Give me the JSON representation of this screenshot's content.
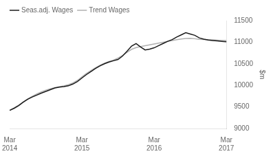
{
  "chart_data": {
    "type": "line",
    "ylabel": "$m",
    "categories": [
      "Mar\n2014",
      null,
      null,
      null,
      null,
      null,
      null,
      null,
      null,
      null,
      null,
      null,
      null,
      null,
      null,
      null,
      "Mar\n2015",
      null,
      null,
      null,
      null,
      null,
      null,
      null,
      null,
      null,
      null,
      null,
      null,
      null,
      null,
      null,
      "Mar\n2016",
      null,
      null,
      null,
      null,
      null,
      null,
      null,
      null,
      null,
      null,
      null,
      null,
      null,
      null,
      null,
      "Mar\n2017"
    ],
    "series": [
      {
        "name": "Seas.adj. Wages",
        "color": "#1a1a1a",
        "values": [
          9420,
          9470,
          9530,
          9610,
          9680,
          9730,
          9775,
          9820,
          9860,
          9900,
          9940,
          9960,
          9970,
          9990,
          10030,
          10090,
          10170,
          10250,
          10320,
          10390,
          10450,
          10500,
          10540,
          10570,
          10600,
          10680,
          10790,
          10910,
          10970,
          10890,
          10820,
          10840,
          10870,
          10920,
          10970,
          11020,
          11060,
          11120,
          11170,
          11220,
          11190,
          11160,
          11100,
          11070,
          11050,
          11040,
          11030,
          11020,
          11010
        ]
      },
      {
        "name": "Trend Wages",
        "color": "#b0b0b0",
        "values": [
          9425,
          9480,
          9545,
          9615,
          9685,
          9745,
          9800,
          9850,
          9890,
          9920,
          9948,
          9968,
          9988,
          10015,
          10055,
          10115,
          10195,
          10275,
          10345,
          10405,
          10465,
          10515,
          10555,
          10585,
          10635,
          10695,
          10765,
          10835,
          10875,
          10898,
          10918,
          10938,
          10958,
          10978,
          10998,
          11018,
          11038,
          11058,
          11075,
          11085,
          11088,
          11080,
          11068,
          11062,
          11058,
          11053,
          11048,
          11043,
          11038
        ]
      }
    ],
    "ylim": [
      9000,
      11500
    ],
    "yticks": [
      9000,
      9500,
      10000,
      10500,
      11000,
      11500
    ],
    "grid": false,
    "legend": "upper left"
  }
}
